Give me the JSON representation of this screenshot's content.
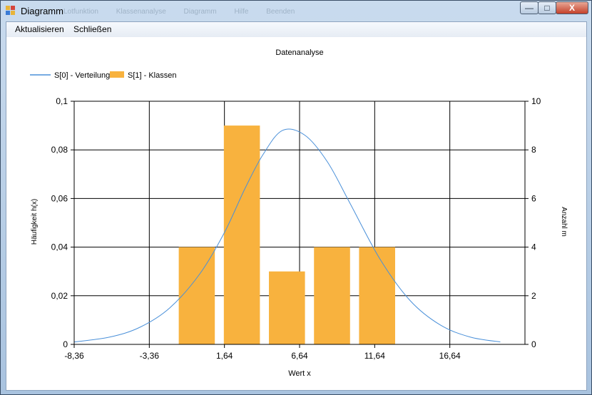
{
  "window": {
    "title": "Diagramm",
    "ghost_menu": [
      "Lotfunktion",
      "Klassenanalyse",
      "Diagramm",
      "Hilfe",
      "Beenden"
    ],
    "minimize_glyph": "—",
    "maximize_glyph": "□",
    "close_glyph": "X"
  },
  "menu": {
    "items": [
      "Aktualisieren",
      "Schließen"
    ]
  },
  "colors": {
    "line": "#4a90d9",
    "bar": "#f8b23e",
    "grid": "#000000"
  },
  "chart_data": {
    "type": "bar",
    "title": "Datenanalyse",
    "xlabel": "Wert x",
    "ylabel_left": "Häufigkeit h(x)",
    "ylabel_right": "Anzahl m",
    "xlim": [
      -8.36,
      21.64
    ],
    "ylim_left": [
      0,
      0.1
    ],
    "ylim_right": [
      0,
      10
    ],
    "x_ticks": [
      "-8,36",
      "-3,36",
      "1,64",
      "6,64",
      "11,64",
      "16,64"
    ],
    "y_left_ticks": [
      "0",
      "0,02",
      "0,04",
      "0,06",
      "0,08",
      "0,1"
    ],
    "y_right_ticks": [
      "0",
      "2",
      "4",
      "6",
      "8",
      "10"
    ],
    "grid": true,
    "legend_position": "top-left",
    "series": [
      {
        "name": "S[0] - Verteilung",
        "type": "line",
        "axis": "left",
        "x": [
          -8.36,
          -6,
          -4,
          -2,
          0,
          1.64,
          3,
          4.2,
          5.5,
          7,
          8.5,
          10,
          12,
          14,
          16,
          18,
          20
        ],
        "values": [
          0.001,
          0.003,
          0.007,
          0.015,
          0.029,
          0.046,
          0.064,
          0.078,
          0.088,
          0.086,
          0.075,
          0.058,
          0.035,
          0.018,
          0.008,
          0.003,
          0.001
        ]
      },
      {
        "name": "S[1] - Klassen",
        "type": "bar",
        "axis": "right",
        "x": [
          -0.2,
          2.8,
          5.8,
          8.8,
          11.8
        ],
        "width": 2.4,
        "values": [
          4,
          9,
          3,
          4,
          4
        ]
      }
    ]
  }
}
